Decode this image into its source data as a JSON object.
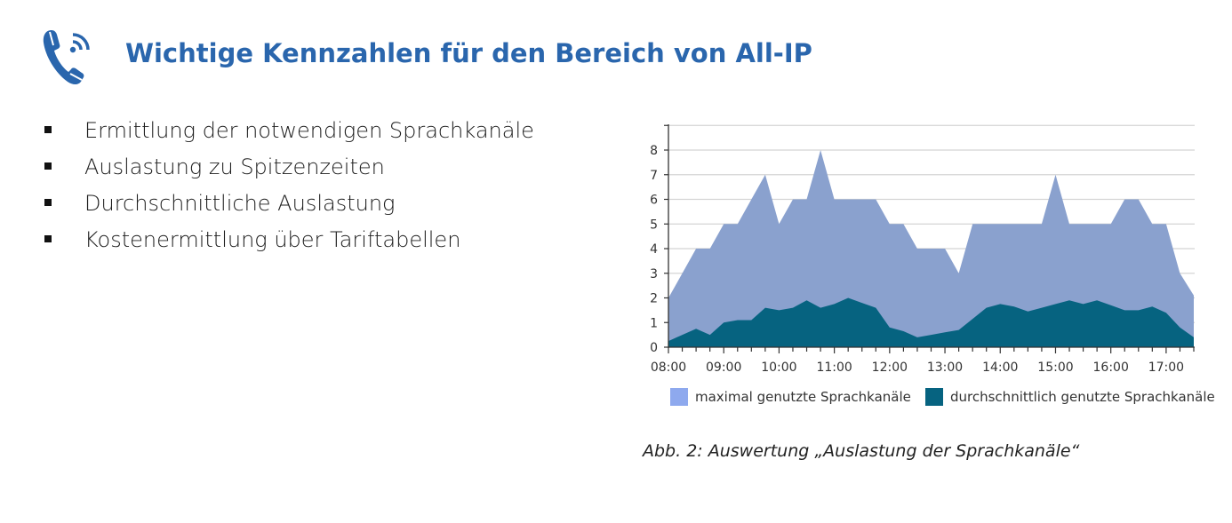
{
  "header": {
    "icon": "phone-signal-icon",
    "title": "Wichtige Kennzahlen für den Bereich von All-IP"
  },
  "bullets": [
    "Ermittlung der notwendigen Sprachkanäle",
    "Auslastung zu Spitzenzeiten",
    "Durchschnittliche Auslastung",
    "Kostenermittlung über Tariftabellen"
  ],
  "colors": {
    "title": "#2a66ad",
    "series_max": "#8aa1ce",
    "series_avg": "#066380",
    "legend_max": "#8ea9ee",
    "grid": "#d4d4d4"
  },
  "caption": "Abb. 2: Auswertung „Auslastung der Sprachkanäle“",
  "chart_data": {
    "type": "area",
    "title": "",
    "xlabel": "",
    "ylabel": "",
    "ylim": [
      0,
      9
    ],
    "yticks": [
      0,
      1,
      2,
      3,
      4,
      5,
      6,
      7,
      8
    ],
    "grid": true,
    "legend_position": "bottom",
    "x": [
      "08:00",
      "08:15",
      "08:30",
      "08:45",
      "09:00",
      "09:15",
      "09:30",
      "09:45",
      "10:00",
      "10:15",
      "10:30",
      "10:45",
      "11:00",
      "11:15",
      "11:30",
      "11:45",
      "12:00",
      "12:15",
      "12:30",
      "12:45",
      "13:00",
      "13:15",
      "13:30",
      "13:45",
      "14:00",
      "14:15",
      "14:30",
      "14:45",
      "15:00",
      "15:15",
      "15:30",
      "15:45",
      "16:00",
      "16:15",
      "16:30",
      "16:45",
      "17:00",
      "17:15",
      "17:30"
    ],
    "xtick_labels": [
      "08:00",
      "09:00",
      "10:00",
      "11:00",
      "12:00",
      "13:00",
      "14:00",
      "15:00",
      "16:00",
      "17:00"
    ],
    "series": [
      {
        "name": "maximal genutzte Sprachkanäle",
        "values": [
          2,
          3,
          4,
          4,
          5,
          5,
          6,
          7,
          5,
          6,
          6,
          8,
          6,
          6,
          6,
          6,
          5,
          5,
          4,
          4,
          4,
          3,
          5,
          5,
          5,
          5,
          5,
          5,
          7,
          5,
          5,
          5,
          5,
          6,
          6,
          5,
          5,
          3,
          2.1
        ]
      },
      {
        "name": "durchschnittlich genutzte Sprachkanäle",
        "values": [
          0.25,
          0.5,
          0.75,
          0.5,
          1.0,
          1.1,
          1.1,
          1.6,
          1.5,
          1.6,
          1.9,
          1.6,
          1.75,
          2.0,
          1.8,
          1.6,
          0.8,
          0.65,
          0.4,
          0.5,
          0.6,
          0.7,
          1.15,
          1.6,
          1.75,
          1.65,
          1.45,
          1.6,
          1.75,
          1.9,
          1.75,
          1.9,
          1.7,
          1.5,
          1.5,
          1.65,
          1.4,
          0.8,
          0.4
        ]
      }
    ]
  }
}
